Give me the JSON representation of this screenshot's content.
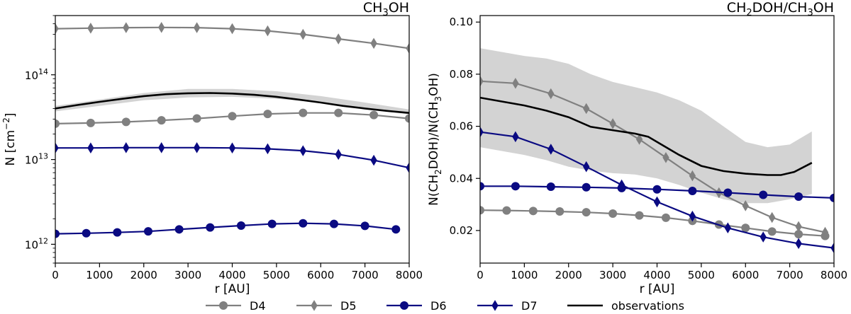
{
  "chart_data": [
    {
      "type": "line",
      "title": "CH",
      "title_sub": "3",
      "title_tail": "OH",
      "xlabel": "r [AU]",
      "ylabel": "N [cm",
      "ylabel_sup": "−2",
      "ylabel_tail": "]",
      "yscale": "log",
      "xlim": [
        0,
        8000
      ],
      "ylim": [
        600000000000.0,
        500000000000000.0
      ],
      "xticks": [
        0,
        1000,
        2000,
        3000,
        4000,
        5000,
        6000,
        7000,
        8000
      ],
      "xtick_labels": [
        "0",
        "1000",
        "2000",
        "3000",
        "4000",
        "5000",
        "6000",
        "7000",
        "8000"
      ],
      "yticks": [
        1000000000000.0,
        10000000000000.0,
        100000000000000.0
      ],
      "ytick_base": "10",
      "ytick_exps": [
        "12",
        "13",
        "14"
      ],
      "band": {
        "x": [
          0,
          1000,
          2000,
          3000,
          4000,
          5000,
          6000,
          7000,
          8000
        ],
        "lower": [
          37000000000000.0,
          43000000000000.0,
          50000000000000.0,
          54000000000000.0,
          55000000000000.0,
          52000000000000.0,
          47000000000000.0,
          40000000000000.0,
          34000000000000.0
        ],
        "upper": [
          43000000000000.0,
          51000000000000.0,
          61000000000000.0,
          68000000000000.0,
          68000000000000.0,
          64000000000000.0,
          56000000000000.0,
          47000000000000.0,
          39000000000000.0
        ]
      },
      "series": [
        {
          "name": "D4",
          "color": "#808080",
          "marker": "circle",
          "x": [
            0,
            800,
            1600,
            2400,
            3200,
            4000,
            4800,
            5600,
            6400,
            7200,
            8000
          ],
          "y": [
            26500000000000.0,
            27000000000000.0,
            27800000000000.0,
            29000000000000.0,
            30500000000000.0,
            32500000000000.0,
            34500000000000.0,
            35500000000000.0,
            35500000000000.0,
            33500000000000.0,
            30500000000000.0
          ]
        },
        {
          "name": "D5",
          "color": "#808080",
          "marker": "diamond",
          "x": [
            0,
            800,
            1600,
            2400,
            3200,
            4000,
            4800,
            5600,
            6400,
            7200,
            8000
          ],
          "y": [
            350000000000000.0,
            355000000000000.0,
            360000000000000.0,
            362000000000000.0,
            360000000000000.0,
            350000000000000.0,
            330000000000000.0,
            300000000000000.0,
            265000000000000.0,
            235000000000000.0,
            205000000000000.0
          ]
        },
        {
          "name": "D6",
          "color": "#0a0a82",
          "marker": "circle",
          "x": [
            0,
            700,
            1400,
            2100,
            2800,
            3500,
            4200,
            4900,
            5600,
            6300,
            7000,
            7700
          ],
          "y": [
            1330000000000.0,
            1350000000000.0,
            1380000000000.0,
            1420000000000.0,
            1500000000000.0,
            1580000000000.0,
            1660000000000.0,
            1740000000000.0,
            1770000000000.0,
            1740000000000.0,
            1650000000000.0,
            1500000000000.0
          ]
        },
        {
          "name": "D7",
          "color": "#0a0a82",
          "marker": "diamond",
          "x": [
            0,
            800,
            1600,
            2400,
            3200,
            4000,
            4800,
            5600,
            6400,
            7200,
            8000
          ],
          "y": [
            13700000000000.0,
            13700000000000.0,
            13800000000000.0,
            13800000000000.0,
            13800000000000.0,
            13700000000000.0,
            13400000000000.0,
            12700000000000.0,
            11500000000000.0,
            9800000000000.0,
            8000000000000.0
          ]
        },
        {
          "name": "observations",
          "color": "#000000",
          "marker": "none",
          "x": [
            0,
            500,
            1000,
            1500,
            2000,
            2500,
            3000,
            3500,
            4000,
            4500,
            5000,
            5500,
            6000,
            6500,
            7000,
            7500,
            8000
          ],
          "y": [
            40000000000000.0,
            44000000000000.0,
            48000000000000.0,
            52000000000000.0,
            56000000000000.0,
            59000000000000.0,
            60500000000000.0,
            61000000000000.0,
            60000000000000.0,
            58000000000000.0,
            55000000000000.0,
            51000000000000.0,
            47000000000000.0,
            43000000000000.0,
            40000000000000.0,
            37500000000000.0,
            35500000000000.0
          ]
        }
      ]
    },
    {
      "type": "line",
      "title": "CH",
      "title_sub": "2",
      "title_tail": "DOH/CH",
      "title_sub2": "3",
      "title_tail2": "OH",
      "xlabel": "r [AU]",
      "ylabel": "N(CH",
      "ylabel_sub": "2",
      "ylabel_mid": "DOH)/N(CH",
      "ylabel_sub2": "3",
      "ylabel_tail": "OH)",
      "yscale": "linear",
      "xlim": [
        0,
        8000
      ],
      "ylim": [
        0.0075,
        0.1025
      ],
      "xticks": [
        0,
        1000,
        2000,
        3000,
        4000,
        5000,
        6000,
        7000,
        8000
      ],
      "xtick_labels": [
        "0",
        "1000",
        "2000",
        "3000",
        "4000",
        "5000",
        "6000",
        "7000",
        "8000"
      ],
      "yticks": [
        0.02,
        0.04,
        0.06,
        0.08,
        0.1
      ],
      "ytick_labels": [
        "0.02",
        "0.04",
        "0.06",
        "0.08",
        "0.10"
      ],
      "band": {
        "x": [
          0,
          500,
          1000,
          1500,
          2000,
          2500,
          3000,
          3500,
          4000,
          4500,
          5000,
          5500,
          6000,
          6500,
          7000,
          7500
        ],
        "lower": [
          0.052,
          0.0505,
          0.049,
          0.047,
          0.0445,
          0.043,
          0.042,
          0.0415,
          0.04,
          0.0375,
          0.0345,
          0.032,
          0.0305,
          0.0305,
          0.032,
          0.034
        ],
        "upper": [
          0.09,
          0.0885,
          0.087,
          0.086,
          0.084,
          0.08,
          0.077,
          0.075,
          0.073,
          0.07,
          0.066,
          0.06,
          0.054,
          0.052,
          0.053,
          0.058
        ]
      },
      "series": [
        {
          "name": "D4",
          "color": "#808080",
          "marker": "circle",
          "x": [
            0,
            600,
            1200,
            1800,
            2400,
            3000,
            3600,
            4200,
            4800,
            5400,
            6000,
            6600,
            7200,
            7800
          ],
          "y": [
            0.0278,
            0.0277,
            0.0275,
            0.0273,
            0.027,
            0.0265,
            0.0258,
            0.0249,
            0.0237,
            0.0223,
            0.021,
            0.0196,
            0.0186,
            0.0179
          ]
        },
        {
          "name": "D5",
          "color": "#808080",
          "marker": "diamond",
          "x": [
            0,
            800,
            1600,
            2400,
            3000,
            3600,
            4200,
            4800,
            5400,
            6000,
            6600,
            7200,
            7800
          ],
          "y": [
            0.0773,
            0.0765,
            0.0725,
            0.0668,
            0.061,
            0.055,
            0.048,
            0.041,
            0.0345,
            0.0295,
            0.025,
            0.0215,
            0.0193
          ]
        },
        {
          "name": "D6",
          "color": "#0a0a82",
          "marker": "circle",
          "x": [
            0,
            800,
            1600,
            2400,
            3200,
            4000,
            4800,
            5600,
            6400,
            7200,
            8000
          ],
          "y": [
            0.037,
            0.037,
            0.0368,
            0.0366,
            0.0363,
            0.0358,
            0.0352,
            0.0345,
            0.0337,
            0.033,
            0.0325
          ]
        },
        {
          "name": "D7",
          "color": "#0a0a82",
          "marker": "diamond",
          "x": [
            0,
            800,
            1600,
            2400,
            3200,
            4000,
            4800,
            5600,
            6400,
            7200,
            8000
          ],
          "y": [
            0.0578,
            0.056,
            0.0512,
            0.0445,
            0.0375,
            0.031,
            0.0255,
            0.021,
            0.0175,
            0.015,
            0.0133
          ]
        },
        {
          "name": "observations",
          "color": "#000000",
          "marker": "none",
          "x": [
            0,
            500,
            1000,
            1500,
            2000,
            2500,
            3000,
            3500,
            3800,
            4100,
            4500,
            5000,
            5500,
            6000,
            6500,
            6800,
            7100,
            7500
          ],
          "y": [
            0.071,
            0.0695,
            0.068,
            0.066,
            0.0635,
            0.0598,
            0.0585,
            0.0572,
            0.056,
            0.053,
            0.049,
            0.0448,
            0.0428,
            0.0418,
            0.0413,
            0.0413,
            0.0425,
            0.046
          ]
        }
      ]
    }
  ],
  "legend": {
    "placement": "bottom-center",
    "entries": [
      "D4",
      "D5",
      "D6",
      "D7",
      "observations"
    ]
  }
}
